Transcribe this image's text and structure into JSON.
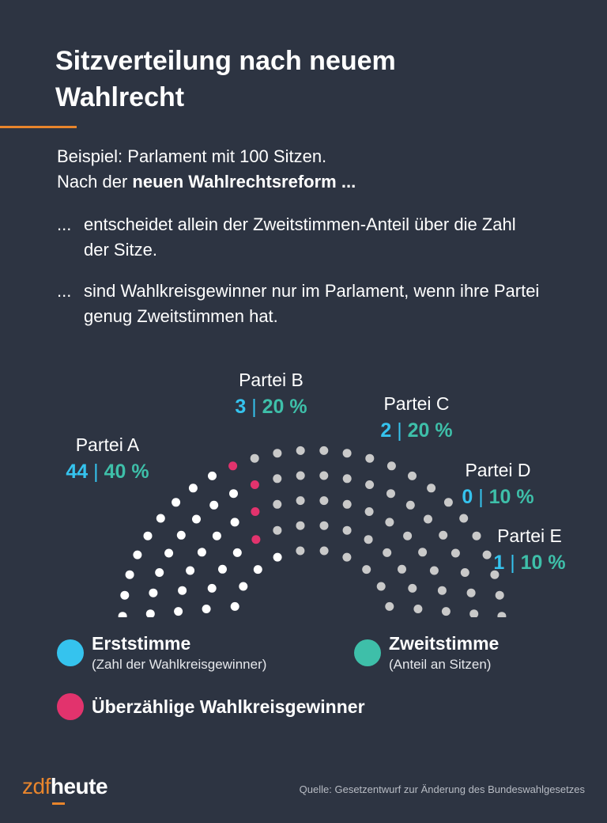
{
  "title": "Sitzverteilung nach neuem Wahlrecht",
  "intro": {
    "line1": "Beispiel: Parlament mit 100 Sitzen.",
    "line2_prefix": "Nach der ",
    "line2_bold": "neuen Wahlrechtsreform ..."
  },
  "bullets": [
    {
      "marker": "...",
      "text": "entscheidet allein der Zweitstimmen-Anteil über die Zahl der Sitze."
    },
    {
      "marker": "...",
      "text": "sind Wahlkreisgewinner nur im Parlament, wenn ihre Partei genug Zweitstimmen hat."
    }
  ],
  "colors": {
    "background": "#2d3442",
    "erststimme": "#35c3ee",
    "zweitstimme": "#3ebfa9",
    "ueberzaehlig": "#e2336d",
    "seat_a": "#ffffff",
    "seat_other": "#c9c9c9",
    "accent": "#e8852c"
  },
  "chart_data": {
    "type": "hemicycle",
    "title": "Sitzverteilung nach neuem Wahlrecht",
    "total_seats": 100,
    "parties": [
      {
        "name": "Partei A",
        "erststimme": 44,
        "zweitstimme_pct": 40,
        "seats": 40,
        "ueberzaehlig": 4,
        "erststimme_label": "44",
        "zweitstimme_label": "40 %"
      },
      {
        "name": "Partei B",
        "erststimme": 3,
        "zweitstimme_pct": 20,
        "seats": 20,
        "ueberzaehlig": 0,
        "erststimme_label": "3",
        "zweitstimme_label": "20 %"
      },
      {
        "name": "Partei C",
        "erststimme": 2,
        "zweitstimme_pct": 20,
        "seats": 20,
        "ueberzaehlig": 0,
        "erststimme_label": "2",
        "zweitstimme_label": "20 %"
      },
      {
        "name": "Partei D",
        "erststimme": 0,
        "zweitstimme_pct": 10,
        "seats": 10,
        "ueberzaehlig": 0,
        "erststimme_label": "0",
        "zweitstimme_label": "10 %"
      },
      {
        "name": "Partei E",
        "erststimme": 1,
        "zweitstimme_pct": 10,
        "seats": 10,
        "ueberzaehlig": 0,
        "erststimme_label": "1",
        "zweitstimme_label": "10 %"
      }
    ],
    "separator": "|"
  },
  "legend": [
    {
      "label": "Erststimme",
      "sub": "(Zahl der Wahlkreisgewinner)",
      "color": "#35c3ee"
    },
    {
      "label": "Zweitstimme",
      "sub": "(Anteil an Sitzen)",
      "color": "#3ebfa9"
    },
    {
      "label": "Überzählige Wahlkreisgewinner",
      "sub": "",
      "color": "#e2336d"
    }
  ],
  "footer": {
    "logo_zdf": "zdf",
    "logo_heute": "heute",
    "source": "Quelle: Gesetzentwurf zur Änderung des Bundeswahlgesetzes"
  }
}
